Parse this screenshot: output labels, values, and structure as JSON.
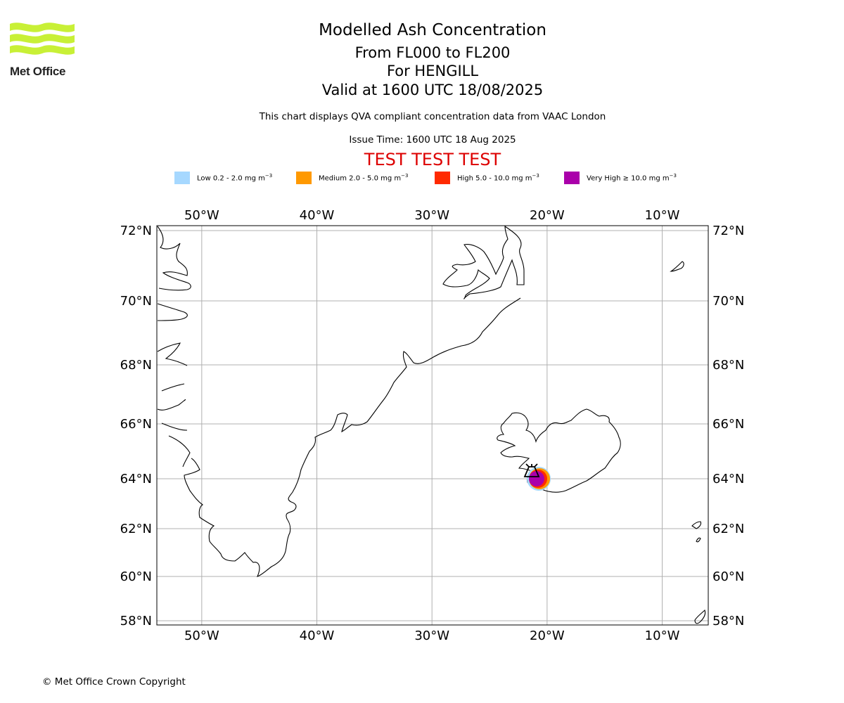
{
  "logo": {
    "text": "Met Office"
  },
  "header": {
    "title": "Modelled Ash Concentration",
    "range": "From FL000 to FL200",
    "volcano": "For HENGILL",
    "valid": "Valid at 1600 UTC 18/08/2025",
    "subtitle": "This chart displays QVA compliant concentration data from VAAC London",
    "issue_time": "Issue Time: 1600 UTC 18 Aug 2025",
    "test_banner": "TEST TEST TEST"
  },
  "legend": [
    {
      "label": "Low 0.2 - 2.0 mg m",
      "color": "#a6d8ff"
    },
    {
      "label": "Medium 2.0 - 5.0 mg m",
      "color": "#ff9900"
    },
    {
      "label": "High 5.0 - 10.0 mg m",
      "color": "#ff2a00"
    },
    {
      "label": "Very High  ≥  10.0 mg m",
      "color": "#aa00aa"
    }
  ],
  "legend_unit_exponent": "−3",
  "map": {
    "lon_labels": [
      "50°W",
      "40°W",
      "30°W",
      "20°W",
      "10°W"
    ],
    "lat_labels": [
      "72°N",
      "70°N",
      "68°N",
      "66°N",
      "64°N",
      "62°N",
      "60°N",
      "58°N"
    ],
    "lon_values": [
      -50,
      -40,
      -30,
      -20,
      -10
    ],
    "lat_values": [
      72,
      70,
      68,
      66,
      64,
      62,
      60,
      58
    ],
    "extent": {
      "lon": [
        -53.9,
        -6
      ],
      "lat": [
        57.8,
        72.2
      ]
    },
    "volcano_name": "HENGILL",
    "volcano_position": {
      "lon": -21.3,
      "lat": 64.1
    }
  },
  "footer": {
    "copyright": "© Met Office Crown Copyright"
  }
}
